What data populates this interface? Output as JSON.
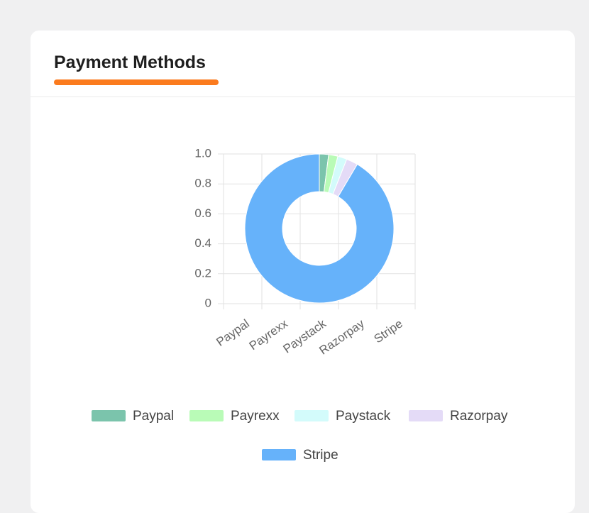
{
  "card": {
    "title": "Payment Methods"
  },
  "chart_data": {
    "type": "doughnut",
    "categories": [
      "Paypal",
      "Payrexx",
      "Paystack",
      "Razorpay",
      "Stripe"
    ],
    "values": [
      2,
      2,
      2,
      2.5,
      91.5
    ],
    "colors": [
      "#7bc4ac",
      "#b9fbb7",
      "#d3fbfb",
      "#e4dbf7",
      "#66b2fa"
    ],
    "ylim": [
      0,
      1
    ],
    "yticks": [
      0,
      0.2,
      0.4,
      0.6,
      0.8,
      {
        "value": 1,
        "label": "1.0"
      }
    ],
    "grid": true
  }
}
